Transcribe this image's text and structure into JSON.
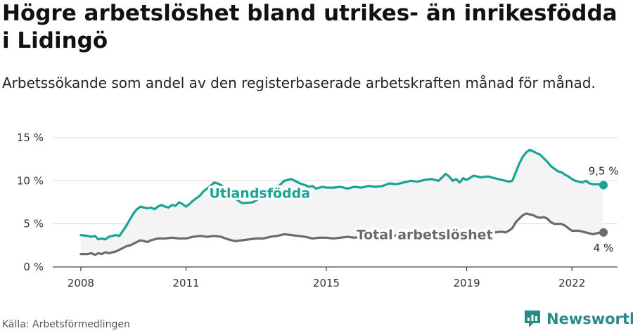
{
  "header": {
    "title": "Högre arbetslöshet bland utrikes- än inrikesfödda i Lidingö",
    "subtitle": "Arbetssökande som andel av den registerbaserade arbetskraften månad för månad."
  },
  "footer": {
    "source": "Källa: Arbetsförmedlingen",
    "brand": "Newsworthy"
  },
  "colors": {
    "teal": "#1aa395",
    "gray": "#6b6b6b",
    "fill": "#f4f4f4",
    "brand": "#2a8a88"
  },
  "chart_data": {
    "type": "line",
    "title": "Högre arbetslöshet bland utrikes- än inrikesfödda i Lidingö",
    "subtitle": "Arbetssökande som andel av den registerbaserade arbetskraften månad för månad.",
    "xlabel": "",
    "ylabel": "",
    "xlim": [
      2007.2,
      2023.3
    ],
    "ylim": [
      0,
      15
    ],
    "x_ticks": [
      2008,
      2011,
      2015,
      2019,
      2022
    ],
    "x_tick_labels": [
      "2008",
      "2011",
      "2015",
      "2019",
      "2022"
    ],
    "y_ticks": [
      0,
      5,
      10,
      15
    ],
    "y_tick_labels": [
      "0 %",
      "5 %",
      "10 %",
      "15 %"
    ],
    "grid": true,
    "series": [
      {
        "name": "Utlandsfödda",
        "color": "#1aa395",
        "end_label": "9,5 %",
        "points": [
          [
            2008.0,
            3.7
          ],
          [
            2008.2,
            3.6
          ],
          [
            2008.3,
            3.5
          ],
          [
            2008.4,
            3.6
          ],
          [
            2008.5,
            3.2
          ],
          [
            2008.6,
            3.3
          ],
          [
            2008.7,
            3.2
          ],
          [
            2008.8,
            3.5
          ],
          [
            2008.9,
            3.6
          ],
          [
            2009.0,
            3.7
          ],
          [
            2009.1,
            3.6
          ],
          [
            2009.2,
            4.2
          ],
          [
            2009.3,
            4.8
          ],
          [
            2009.4,
            5.5
          ],
          [
            2009.5,
            6.2
          ],
          [
            2009.6,
            6.7
          ],
          [
            2009.7,
            7.0
          ],
          [
            2009.8,
            6.9
          ],
          [
            2009.9,
            6.8
          ],
          [
            2010.0,
            6.9
          ],
          [
            2010.1,
            6.7
          ],
          [
            2010.2,
            7.0
          ],
          [
            2010.3,
            7.2
          ],
          [
            2010.4,
            7.0
          ],
          [
            2010.5,
            6.9
          ],
          [
            2010.6,
            7.2
          ],
          [
            2010.7,
            7.1
          ],
          [
            2010.8,
            7.5
          ],
          [
            2010.9,
            7.3
          ],
          [
            2011.0,
            7.0
          ],
          [
            2011.1,
            7.3
          ],
          [
            2011.2,
            7.7
          ],
          [
            2011.3,
            8.0
          ],
          [
            2011.4,
            8.3
          ],
          [
            2011.5,
            8.8
          ],
          [
            2011.6,
            9.1
          ],
          [
            2011.7,
            9.4
          ],
          [
            2011.8,
            9.8
          ],
          [
            2011.9,
            9.7
          ],
          [
            2012.0,
            9.5
          ],
          [
            2012.3,
            8.2
          ],
          [
            2012.6,
            7.4
          ],
          [
            2012.9,
            7.5
          ],
          [
            2013.2,
            8.2
          ],
          [
            2013.5,
            9.0
          ],
          [
            2013.7,
            9.6
          ],
          [
            2013.8,
            10.0
          ],
          [
            2013.9,
            10.1
          ],
          [
            2014.0,
            10.2
          ],
          [
            2014.1,
            10.0
          ],
          [
            2014.2,
            9.8
          ],
          [
            2014.3,
            9.6
          ],
          [
            2014.4,
            9.5
          ],
          [
            2014.5,
            9.3
          ],
          [
            2014.6,
            9.4
          ],
          [
            2014.7,
            9.1
          ],
          [
            2014.8,
            9.2
          ],
          [
            2014.9,
            9.3
          ],
          [
            2015.0,
            9.2
          ],
          [
            2015.2,
            9.2
          ],
          [
            2015.4,
            9.3
          ],
          [
            2015.6,
            9.1
          ],
          [
            2015.8,
            9.3
          ],
          [
            2016.0,
            9.2
          ],
          [
            2016.2,
            9.4
          ],
          [
            2016.4,
            9.3
          ],
          [
            2016.6,
            9.4
          ],
          [
            2016.8,
            9.7
          ],
          [
            2017.0,
            9.6
          ],
          [
            2017.2,
            9.8
          ],
          [
            2017.4,
            10.0
          ],
          [
            2017.6,
            9.9
          ],
          [
            2017.8,
            10.1
          ],
          [
            2018.0,
            10.2
          ],
          [
            2018.2,
            10.0
          ],
          [
            2018.4,
            10.8
          ],
          [
            2018.5,
            10.5
          ],
          [
            2018.6,
            10.0
          ],
          [
            2018.7,
            10.2
          ],
          [
            2018.8,
            9.8
          ],
          [
            2018.9,
            10.3
          ],
          [
            2019.0,
            10.1
          ],
          [
            2019.2,
            10.6
          ],
          [
            2019.3,
            10.5
          ],
          [
            2019.4,
            10.4
          ],
          [
            2019.6,
            10.5
          ],
          [
            2019.8,
            10.3
          ],
          [
            2020.0,
            10.1
          ],
          [
            2020.2,
            9.9
          ],
          [
            2020.3,
            10.0
          ],
          [
            2020.4,
            11.0
          ],
          [
            2020.5,
            12.0
          ],
          [
            2020.6,
            12.8
          ],
          [
            2020.7,
            13.3
          ],
          [
            2020.8,
            13.6
          ],
          [
            2020.9,
            13.4
          ],
          [
            2021.0,
            13.2
          ],
          [
            2021.1,
            13.0
          ],
          [
            2021.2,
            12.6
          ],
          [
            2021.3,
            12.2
          ],
          [
            2021.4,
            11.7
          ],
          [
            2021.5,
            11.4
          ],
          [
            2021.6,
            11.1
          ],
          [
            2021.7,
            11.0
          ],
          [
            2021.8,
            10.7
          ],
          [
            2021.9,
            10.5
          ],
          [
            2022.0,
            10.2
          ],
          [
            2022.1,
            10.0
          ],
          [
            2022.2,
            9.9
          ],
          [
            2022.3,
            9.8
          ],
          [
            2022.4,
            10.0
          ],
          [
            2022.5,
            9.7
          ],
          [
            2022.6,
            9.6
          ],
          [
            2022.8,
            9.6
          ],
          [
            2022.9,
            9.5
          ]
        ]
      },
      {
        "name": "Total arbetslöshet",
        "color": "#6b6b6b",
        "end_label": "4 %",
        "points": [
          [
            2008.0,
            1.5
          ],
          [
            2008.2,
            1.5
          ],
          [
            2008.3,
            1.6
          ],
          [
            2008.4,
            1.4
          ],
          [
            2008.5,
            1.6
          ],
          [
            2008.6,
            1.5
          ],
          [
            2008.7,
            1.7
          ],
          [
            2008.8,
            1.6
          ],
          [
            2008.9,
            1.7
          ],
          [
            2009.0,
            1.8
          ],
          [
            2009.1,
            2.0
          ],
          [
            2009.2,
            2.2
          ],
          [
            2009.3,
            2.4
          ],
          [
            2009.4,
            2.5
          ],
          [
            2009.5,
            2.7
          ],
          [
            2009.6,
            2.9
          ],
          [
            2009.7,
            3.1
          ],
          [
            2009.8,
            3.0
          ],
          [
            2009.9,
            2.9
          ],
          [
            2010.0,
            3.1
          ],
          [
            2010.2,
            3.3
          ],
          [
            2010.4,
            3.3
          ],
          [
            2010.6,
            3.4
          ],
          [
            2010.8,
            3.3
          ],
          [
            2011.0,
            3.3
          ],
          [
            2011.2,
            3.5
          ],
          [
            2011.4,
            3.6
          ],
          [
            2011.6,
            3.5
          ],
          [
            2011.8,
            3.6
          ],
          [
            2012.0,
            3.5
          ],
          [
            2012.2,
            3.2
          ],
          [
            2012.4,
            3.0
          ],
          [
            2012.6,
            3.1
          ],
          [
            2012.8,
            3.2
          ],
          [
            2013.0,
            3.3
          ],
          [
            2013.2,
            3.3
          ],
          [
            2013.4,
            3.5
          ],
          [
            2013.6,
            3.6
          ],
          [
            2013.8,
            3.8
          ],
          [
            2014.0,
            3.7
          ],
          [
            2014.2,
            3.6
          ],
          [
            2014.4,
            3.5
          ],
          [
            2014.6,
            3.3
          ],
          [
            2014.8,
            3.4
          ],
          [
            2015.0,
            3.4
          ],
          [
            2015.2,
            3.3
          ],
          [
            2015.4,
            3.4
          ],
          [
            2015.6,
            3.5
          ],
          [
            2015.8,
            3.4
          ],
          [
            2016.0,
            3.5
          ],
          [
            2016.4,
            3.5
          ],
          [
            2016.8,
            3.6
          ],
          [
            2017.2,
            3.7
          ],
          [
            2017.6,
            3.7
          ],
          [
            2018.0,
            3.8
          ],
          [
            2018.4,
            3.9
          ],
          [
            2018.8,
            3.8
          ],
          [
            2019.2,
            3.9
          ],
          [
            2019.6,
            4.0
          ],
          [
            2019.8,
            4.0
          ],
          [
            2020.0,
            4.1
          ],
          [
            2020.1,
            4.0
          ],
          [
            2020.2,
            4.2
          ],
          [
            2020.3,
            4.5
          ],
          [
            2020.4,
            5.2
          ],
          [
            2020.5,
            5.6
          ],
          [
            2020.6,
            6.0
          ],
          [
            2020.7,
            6.2
          ],
          [
            2020.8,
            6.1
          ],
          [
            2020.9,
            6.0
          ],
          [
            2021.0,
            5.8
          ],
          [
            2021.1,
            5.7
          ],
          [
            2021.2,
            5.8
          ],
          [
            2021.3,
            5.6
          ],
          [
            2021.4,
            5.2
          ],
          [
            2021.5,
            5.0
          ],
          [
            2021.6,
            5.0
          ],
          [
            2021.7,
            5.0
          ],
          [
            2021.8,
            4.8
          ],
          [
            2021.9,
            4.5
          ],
          [
            2022.0,
            4.2
          ],
          [
            2022.2,
            4.2
          ],
          [
            2022.4,
            4.0
          ],
          [
            2022.5,
            3.9
          ],
          [
            2022.6,
            3.8
          ],
          [
            2022.7,
            3.9
          ],
          [
            2022.8,
            4.0
          ],
          [
            2022.9,
            4.0
          ]
        ]
      }
    ],
    "annotations": [
      {
        "text": "Utlandsfödda",
        "x": 2013.1,
        "y": 8.5,
        "color": "#1aa395"
      },
      {
        "text": "Total arbetslöshet",
        "x": 2017.8,
        "y": 3.7,
        "color": "#6b6b6b"
      }
    ]
  }
}
